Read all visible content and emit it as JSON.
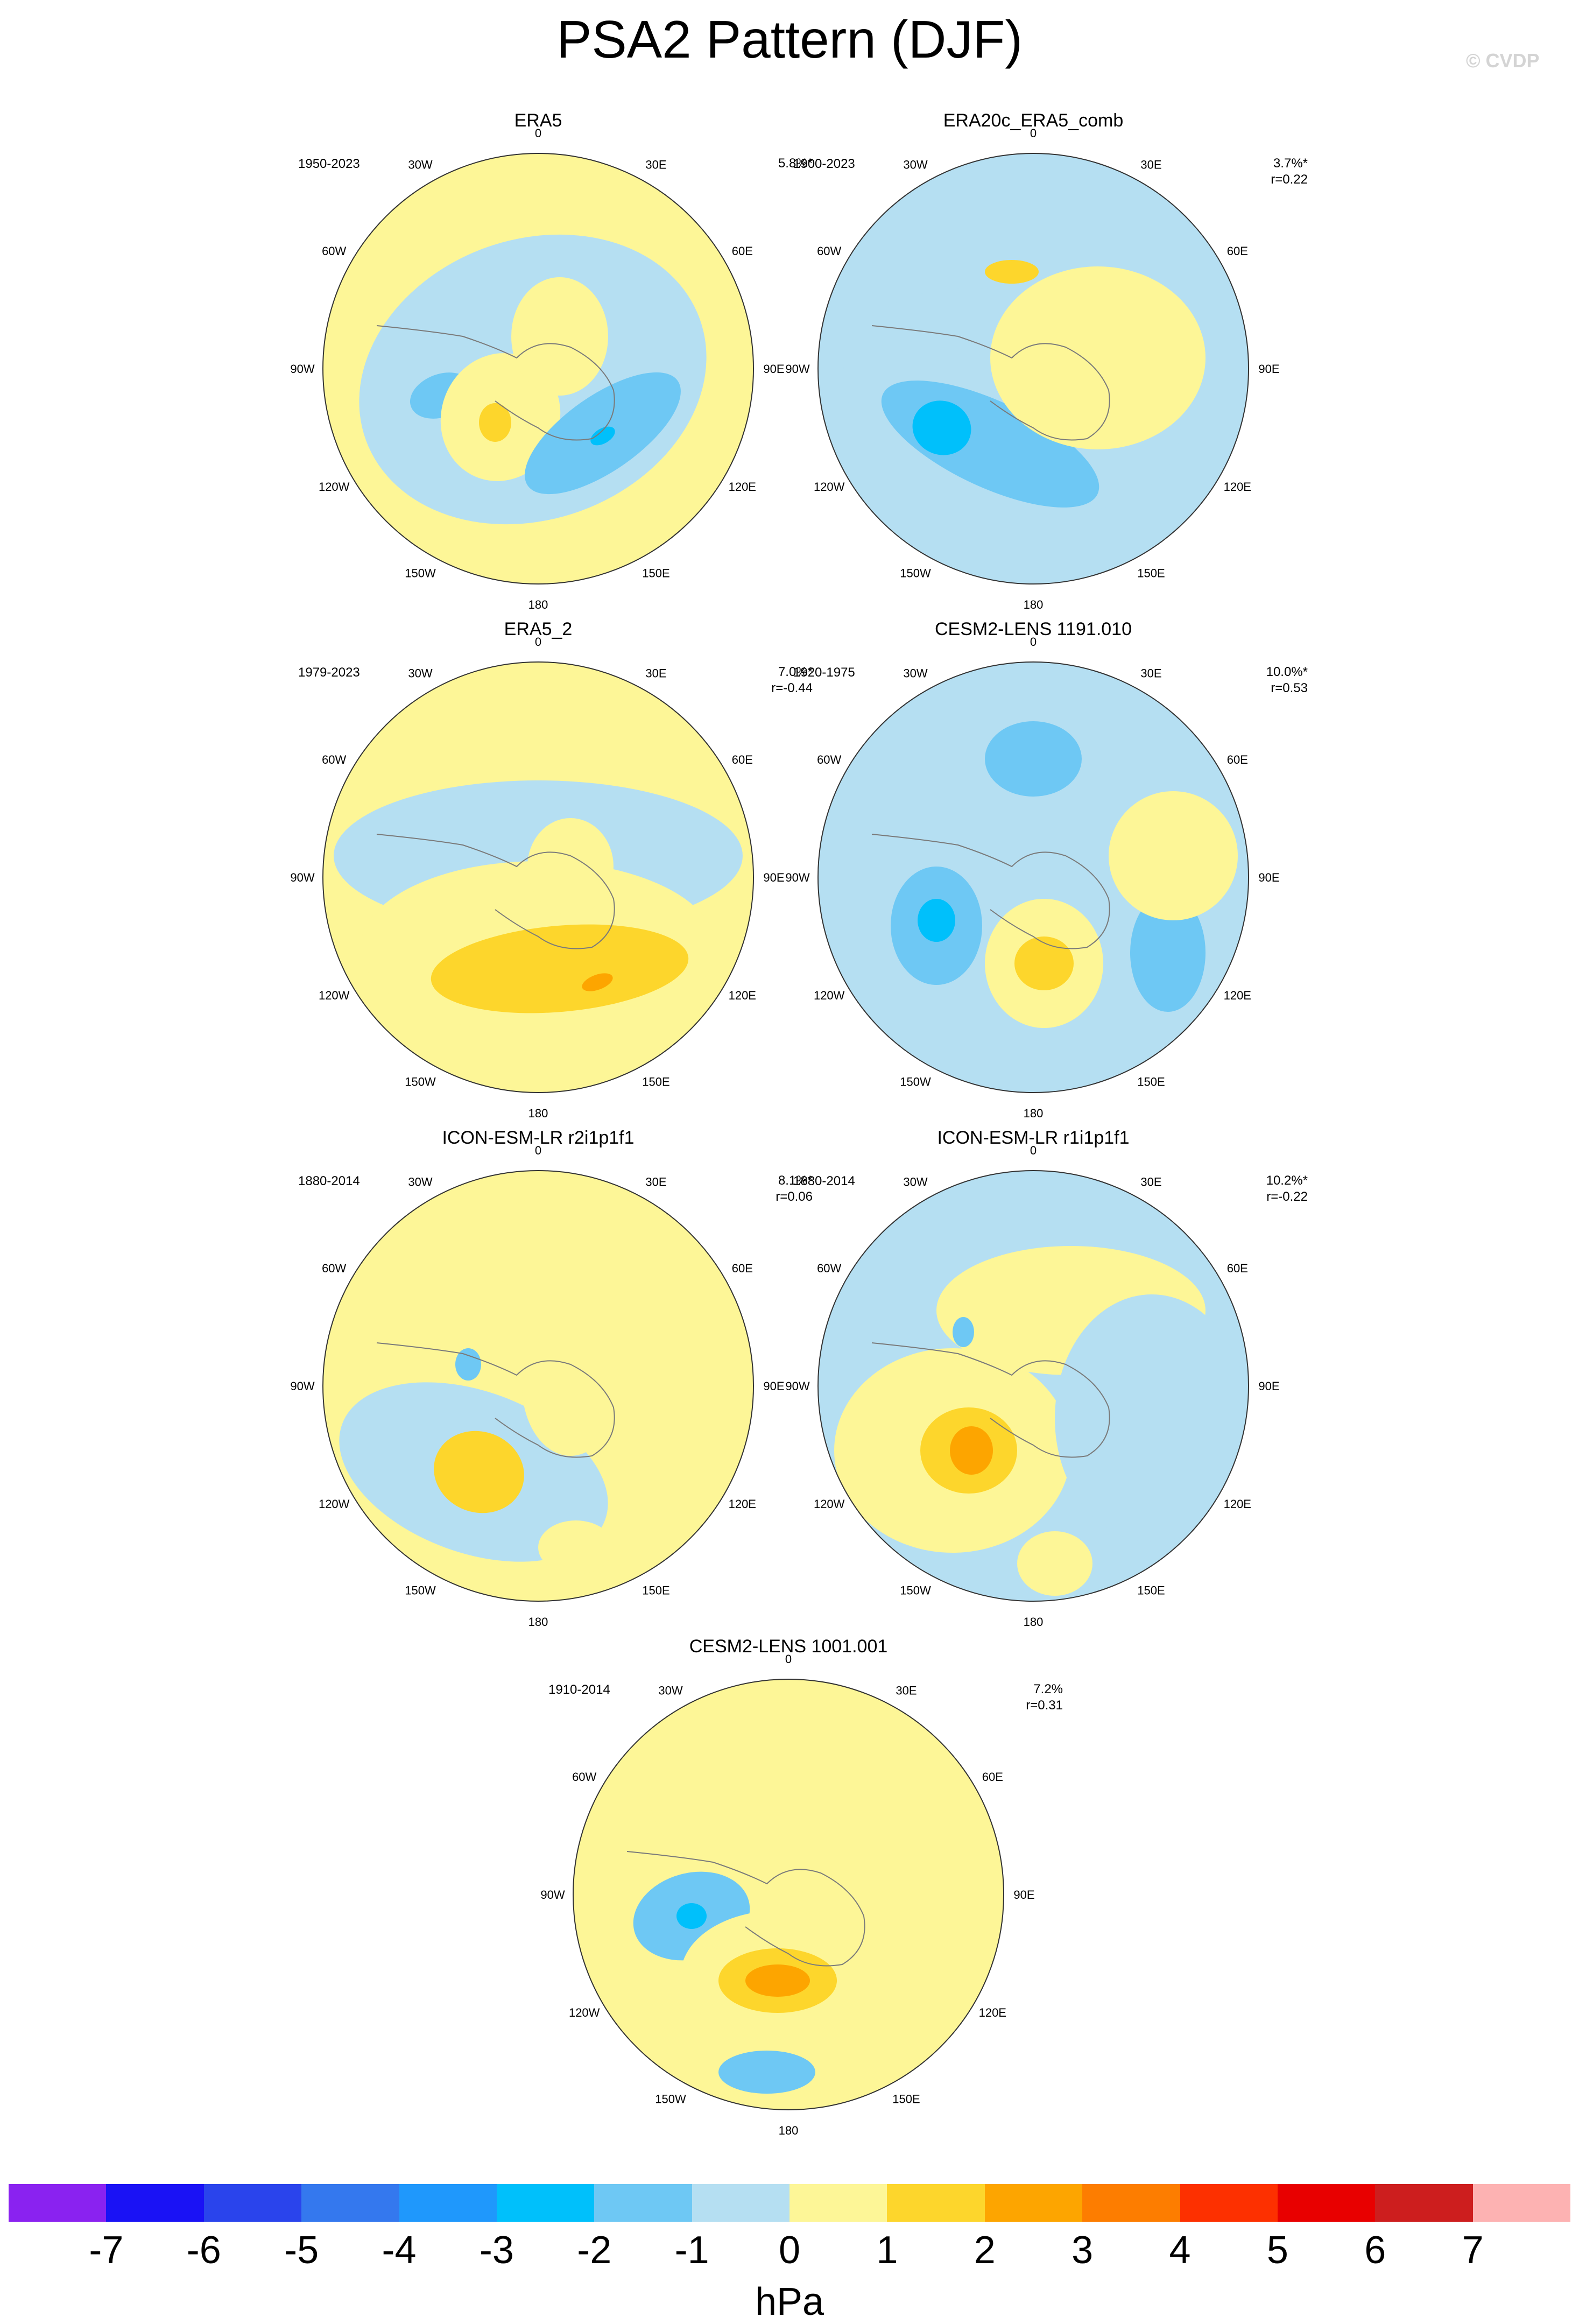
{
  "title": "PSA2 Pattern (DJF)",
  "credit": "© CVDP",
  "panels": [
    {
      "name": "ERA5",
      "period": "1950-2023",
      "pct": "5.8%*",
      "r": ""
    },
    {
      "name": "ERA20c_ERA5_comb",
      "period": "1900-2023",
      "pct": "3.7%*",
      "r": "r=0.22"
    },
    {
      "name": "ERA5_2",
      "period": "1979-2023",
      "pct": "7.0%*",
      "r": "r=-0.44"
    },
    {
      "name": "CESM2-LENS 1191.010",
      "period": "1920-1975",
      "pct": "10.0%*",
      "r": "r=0.53"
    },
    {
      "name": "ICON-ESM-LR r2i1p1f1",
      "period": "1880-2014",
      "pct": "8.1%*",
      "r": "r=0.06"
    },
    {
      "name": "ICON-ESM-LR r1i1p1f1",
      "period": "1880-2014",
      "pct": "10.2%*",
      "r": "r=-0.22"
    },
    {
      "name": "CESM2-LENS 1001.001",
      "period": "1910-2014",
      "pct": "7.2%",
      "r": "r=0.31"
    }
  ],
  "lon_labels": [
    "0",
    "30E",
    "60E",
    "90E",
    "120E",
    "150E",
    "180",
    "150W",
    "120W",
    "90W",
    "60W",
    "30W"
  ],
  "colorbar": {
    "colors": [
      "#8a22f0",
      "#1a12f5",
      "#2a44ec",
      "#3478ee",
      "#1f98fc",
      "#00c0fb",
      "#6ec8f4",
      "#b5dff2",
      "#fdf697",
      "#fdd62c",
      "#fda500",
      "#fd7d00",
      "#fd3000",
      "#e80000",
      "#cd1e1e",
      "#fdb2b2"
    ],
    "ticks": [
      "-7",
      "-6",
      "-5",
      "-4",
      "-3",
      "-2",
      "-1",
      "0",
      "1",
      "2",
      "3",
      "4",
      "5",
      "6",
      "7"
    ],
    "units": "hPa"
  }
}
